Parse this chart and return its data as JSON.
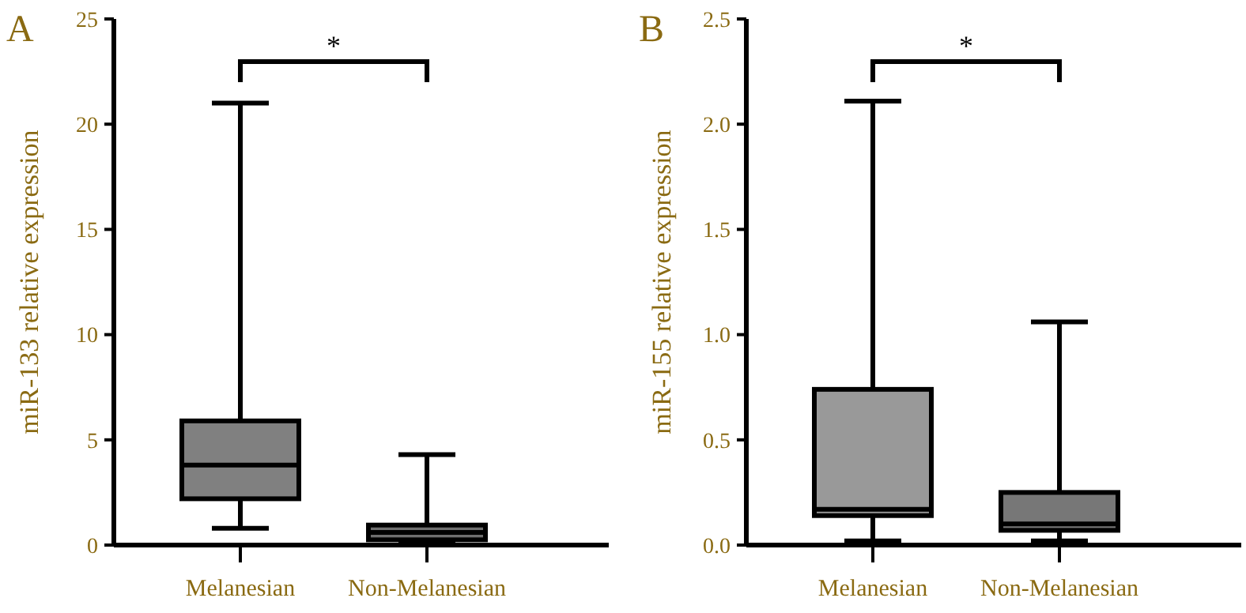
{
  "chart_data": [
    {
      "type": "box",
      "title": "A",
      "ylabel": "miR-133 relative expression",
      "categories": [
        "Melanesian",
        "Non-Melanesian"
      ],
      "colors": [
        "#808080",
        "#6e6e6e"
      ],
      "boxes": [
        {
          "low": 0.8,
          "q1": 2.2,
          "median": 3.8,
          "q3": 5.9,
          "high": 21
        },
        {
          "low": 0.05,
          "q1": 0.25,
          "median": 0.6,
          "q3": 0.95,
          "high": 4.3
        }
      ],
      "ylim": [
        0,
        25
      ],
      "yticks": [
        0,
        5,
        10,
        15,
        20,
        25
      ],
      "annotations": [
        "*"
      ]
    },
    {
      "type": "box",
      "title": "B",
      "ylabel": "miR-155 relative expression",
      "categories": [
        "Melanesian",
        "Non-Melanesian"
      ],
      "colors": [
        "#999999",
        "#777777"
      ],
      "boxes": [
        {
          "low": 0.02,
          "q1": 0.14,
          "median": 0.17,
          "q3": 0.74,
          "high": 2.11
        },
        {
          "low": 0.02,
          "q1": 0.07,
          "median": 0.1,
          "q3": 0.25,
          "high": 1.06
        }
      ],
      "ylim": [
        0,
        2.5
      ],
      "yticks": [
        {
          "value": 0,
          "label": "0.0"
        },
        {
          "value": 0.5,
          "label": "0.5"
        },
        {
          "value": 1,
          "label": "1.0"
        },
        {
          "value": 1.5,
          "label": "1.5"
        },
        {
          "value": 2,
          "label": "2.0"
        },
        {
          "value": 2.5,
          "label": "2.5"
        }
      ],
      "annotations": [
        "*"
      ]
    }
  ]
}
